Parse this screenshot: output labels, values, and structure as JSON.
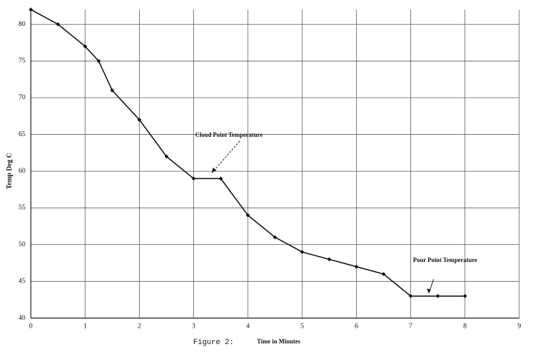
{
  "chart_data": {
    "type": "line",
    "caption": "Figure 2:",
    "x_label": "Time in Minutes",
    "y_label": "Temp Deg C",
    "x": [
      0,
      0.5,
      1,
      1.25,
      1.5,
      2,
      2.5,
      3,
      3.5,
      4,
      4.5,
      5,
      5.5,
      6,
      6.5,
      7,
      7.5,
      8
    ],
    "series": [
      {
        "name": "Temperature",
        "color": "#111111",
        "values": [
          82,
          80,
          77,
          75,
          71,
          67,
          62,
          59,
          59,
          54,
          51,
          49,
          48,
          47,
          46,
          43,
          43,
          43
        ]
      }
    ],
    "xlim": [
      0,
      9
    ],
    "xticks": [
      0,
      1,
      2,
      3,
      4,
      5,
      6,
      7,
      8,
      9
    ],
    "ylim": [
      40,
      82
    ],
    "yticks": [
      40,
      45,
      50,
      55,
      60,
      65,
      70,
      75,
      80
    ],
    "grid": true,
    "annotations": [
      {
        "text": "Cloud Point Temperature"
      },
      {
        "text": "Pour Point Temperature"
      }
    ]
  }
}
